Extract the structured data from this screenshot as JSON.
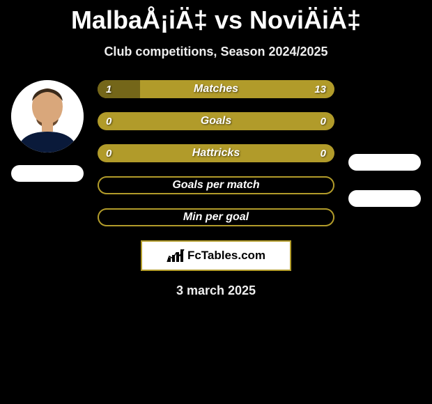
{
  "title": "MalbaÅ¡iÄ‡ vs NoviÄiÄ‡",
  "subtitle": "Club competitions, Season 2024/2025",
  "date": "3 march 2025",
  "logo_text": "FcTables.com",
  "colors": {
    "bar_base": "#b19b2a",
    "bar_dark": "#746619",
    "bg": "#000000",
    "text": "#ffffff"
  },
  "bars": [
    {
      "label": "Matches",
      "left": "1",
      "right": "13",
      "left_pct": 18,
      "filled": true
    },
    {
      "label": "Goals",
      "left": "0",
      "right": "0",
      "left_pct": 0,
      "filled": true
    },
    {
      "label": "Hattricks",
      "left": "0",
      "right": "0",
      "left_pct": 0,
      "filled": true
    },
    {
      "label": "Goals per match",
      "left": "",
      "right": "",
      "left_pct": 0,
      "filled": false
    },
    {
      "label": "Min per goal",
      "left": "",
      "right": "",
      "left_pct": 0,
      "filled": false
    }
  ]
}
